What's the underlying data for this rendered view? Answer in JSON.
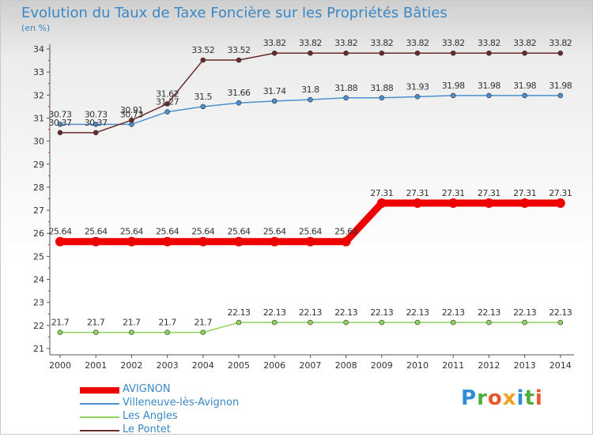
{
  "title": "Evolution du Taux de Taxe Foncière sur les Propriétés Bâties",
  "unit_label": "(en %)",
  "logo": {
    "text": "Proxiti",
    "letter_colors": [
      "#2e8bd8",
      "#4cae3c",
      "#e8572c",
      "#f0a020",
      "#2e8bd8",
      "#4cae3c",
      "#e8572c"
    ]
  },
  "chart_data": {
    "type": "line",
    "title": "Evolution du Taux de Taxe Foncière sur les Propriétés Bâties",
    "ylabel": "(en %)",
    "xlabel": "",
    "x": [
      "2000",
      "2001",
      "2002",
      "2003",
      "2004",
      "2005",
      "2006",
      "2007",
      "2008",
      "2009",
      "2010",
      "2011",
      "2012",
      "2013",
      "2014"
    ],
    "ylim": [
      21,
      34
    ],
    "yticks": [
      "21",
      "22",
      "23",
      "24",
      "25",
      "26",
      "27",
      "28",
      "29",
      "30",
      "31",
      "32",
      "33",
      "34"
    ],
    "grid": false,
    "legend_position": "bottom-left",
    "series": [
      {
        "name": "AVIGNON",
        "color": "#ee0000",
        "thick": true,
        "values": [
          25.64,
          25.64,
          25.64,
          25.64,
          25.64,
          25.64,
          25.64,
          25.64,
          25.64,
          27.31,
          27.31,
          27.31,
          27.31,
          27.31,
          27.31
        ],
        "labels": [
          "25.64",
          "25.64",
          "25.64",
          "25.64",
          "25.64",
          "25.64",
          "25.64",
          "25.64",
          "25.64",
          "27.31",
          "27.31",
          "27.31",
          "27.31",
          "27.31",
          "27.31"
        ]
      },
      {
        "name": "Villeneuve-lès-Avignon",
        "color": "#4a90cf",
        "thick": false,
        "values": [
          30.73,
          30.73,
          30.73,
          31.27,
          31.5,
          31.66,
          31.74,
          31.8,
          31.88,
          31.88,
          31.93,
          31.98,
          31.98,
          31.98,
          31.98
        ],
        "labels": [
          "30.73",
          "30.73",
          "30.73",
          "31.27",
          "31.5",
          "31.66",
          "31.74",
          "31.8",
          "31.88",
          "31.88",
          "31.93",
          "31.98",
          "31.98",
          "31.98",
          "31.98"
        ]
      },
      {
        "name": "Les Angles",
        "color": "#8fd45a",
        "thick": false,
        "values": [
          21.7,
          21.7,
          21.7,
          21.7,
          21.7,
          22.13,
          22.13,
          22.13,
          22.13,
          22.13,
          22.13,
          22.13,
          22.13,
          22.13,
          22.13
        ],
        "labels": [
          "21.7",
          "21.7",
          "21.7",
          "21.7",
          "21.7",
          "22.13",
          "22.13",
          "22.13",
          "22.13",
          "22.13",
          "22.13",
          "22.13",
          "22.13",
          "22.13",
          "22.13"
        ]
      },
      {
        "name": "Le Pontet",
        "color": "#6b2a2a",
        "thick": false,
        "values": [
          30.37,
          30.37,
          30.91,
          31.62,
          33.52,
          33.52,
          33.82,
          33.82,
          33.82,
          33.82,
          33.82,
          33.82,
          33.82,
          33.82,
          33.82
        ],
        "labels": [
          "30.37",
          "30.37",
          "30.91",
          "31.62",
          "33.52",
          "33.52",
          "33.82",
          "33.82",
          "33.82",
          "33.82",
          "33.82",
          "33.82",
          "33.82",
          "33.82",
          "33.82"
        ]
      }
    ]
  }
}
